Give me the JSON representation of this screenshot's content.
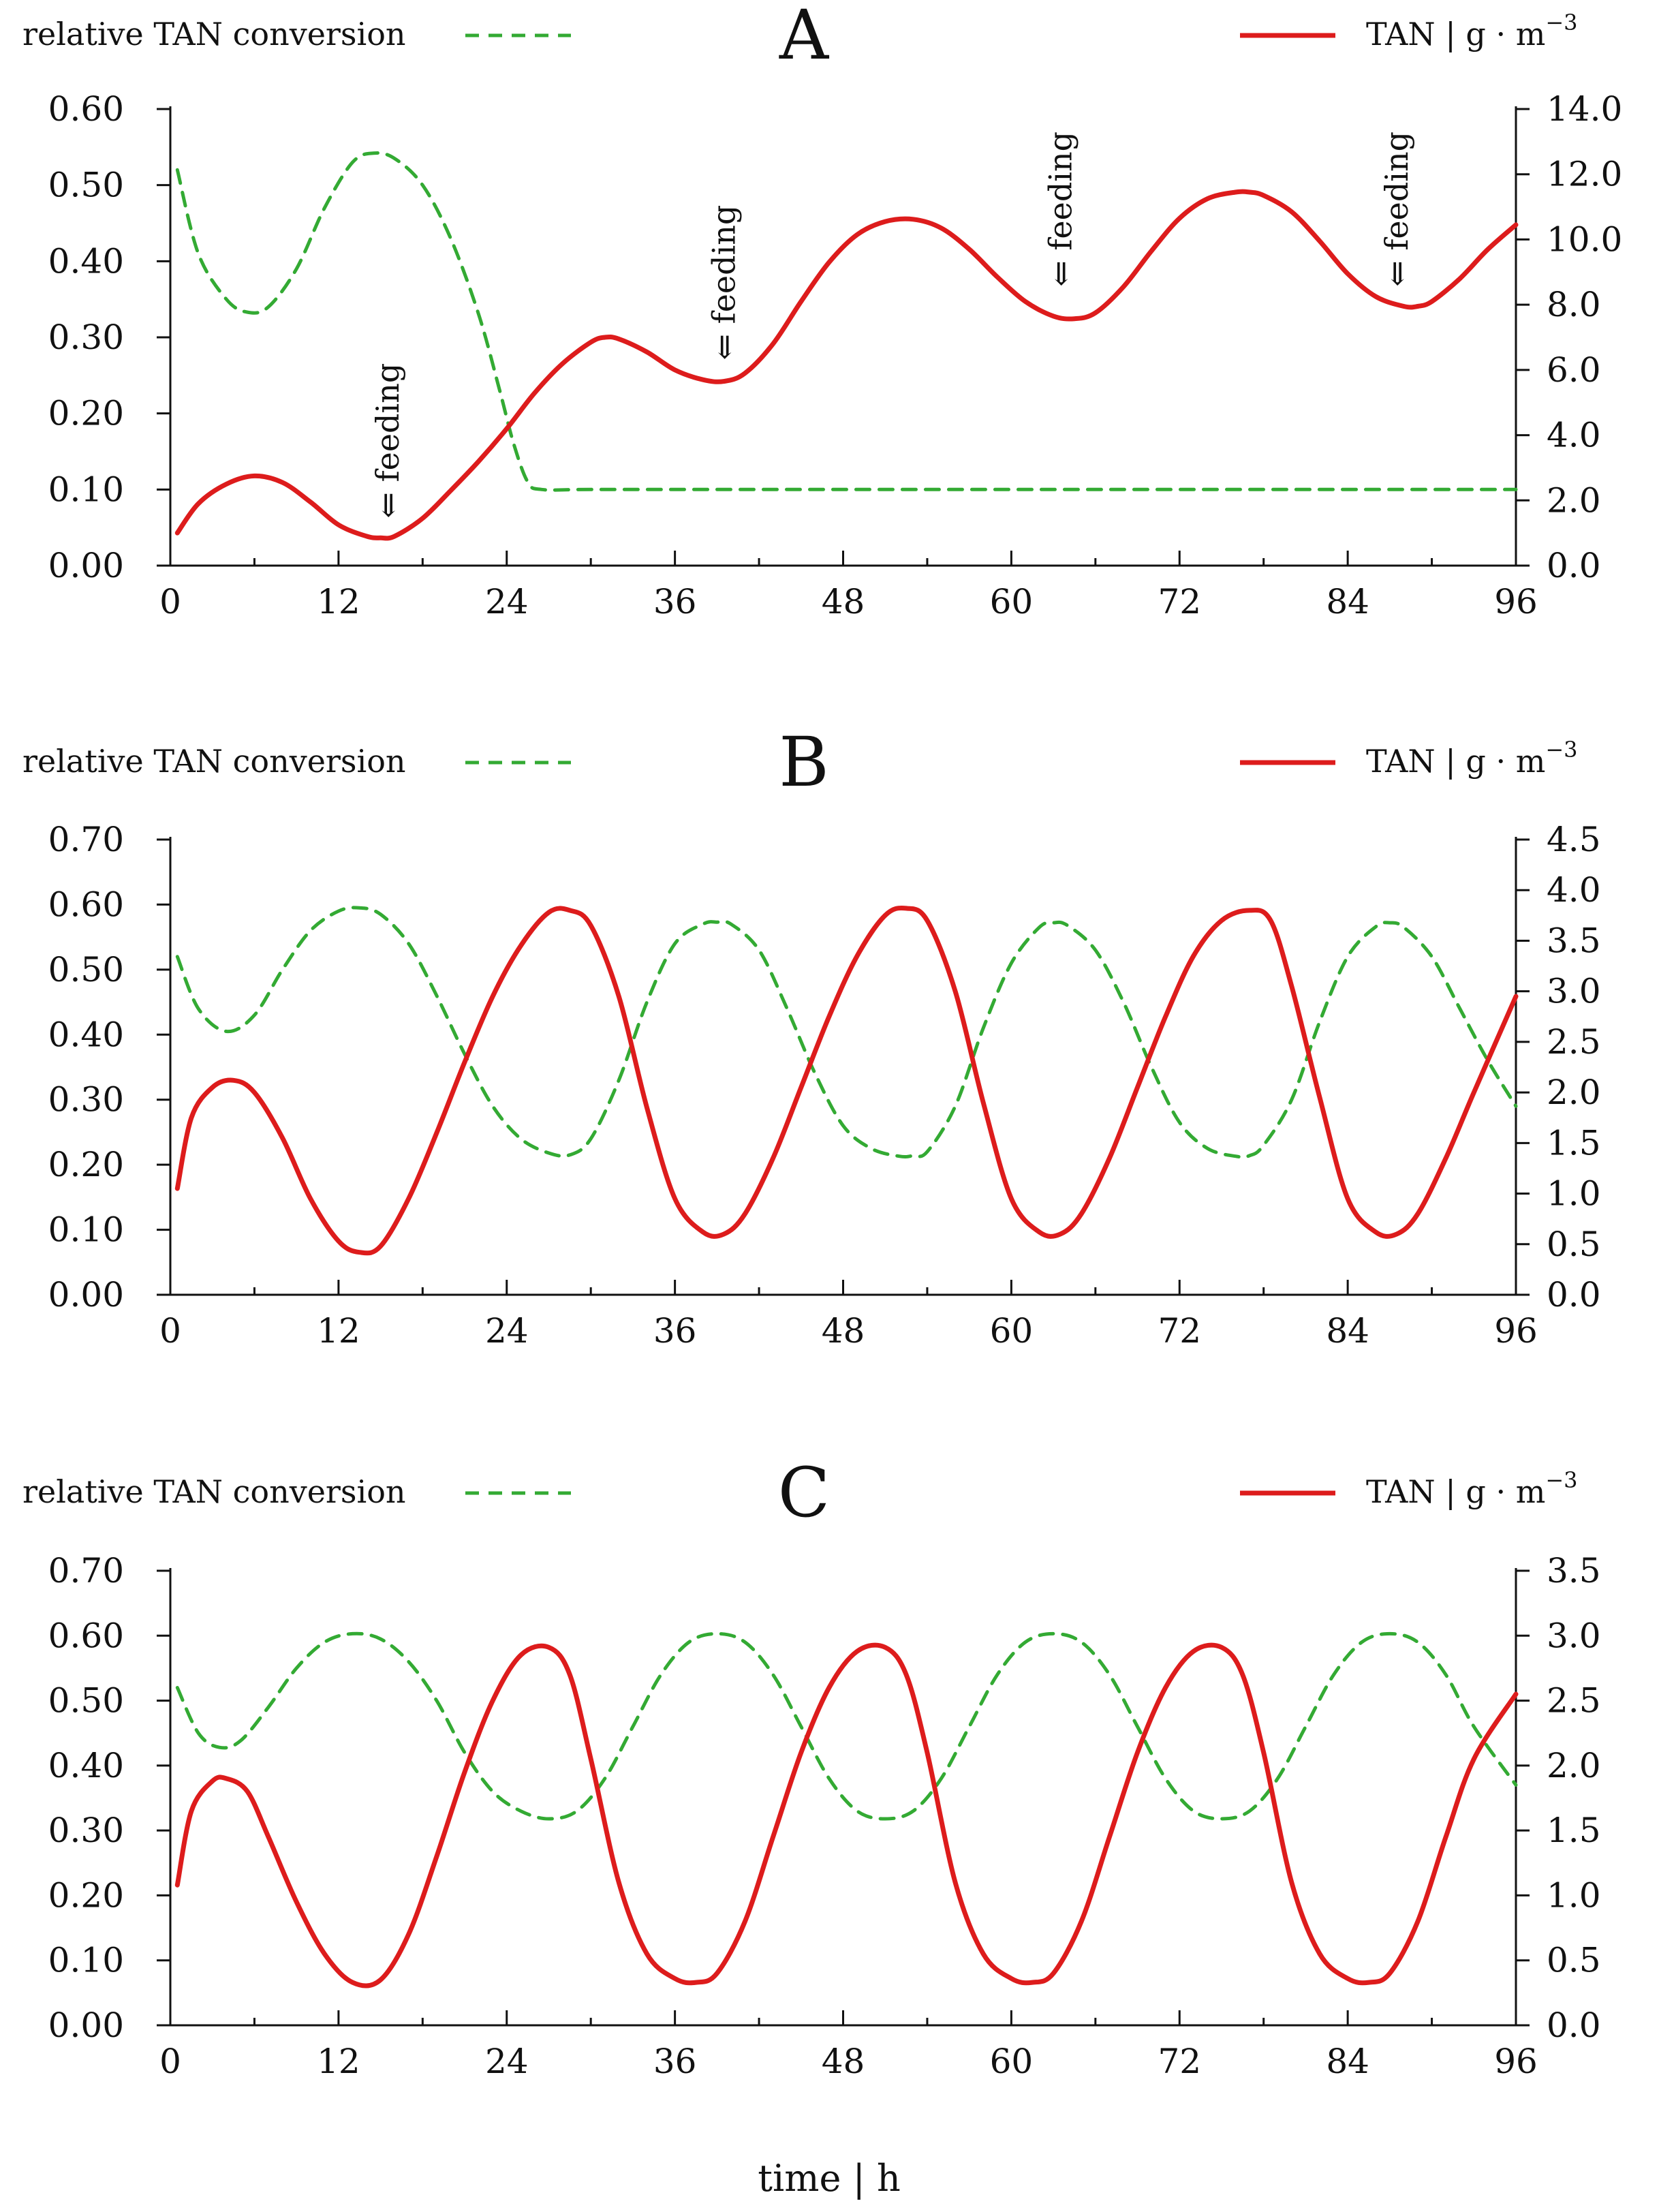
{
  "figure": {
    "x_axis_title": "time | h",
    "legend_left_label": "relative TAN conversion",
    "legend_right_label": "TAN | g · m",
    "legend_right_exponent": "−3",
    "colors": {
      "conversion": "#33aa33",
      "tan": "#dd1c1c",
      "axis": "#111111"
    }
  },
  "chart_data": [
    {
      "type": "line",
      "title": "A",
      "xlabel": "time | h",
      "xlim": [
        0,
        96
      ],
      "xticks": [
        0,
        12,
        24,
        36,
        48,
        60,
        72,
        84,
        96
      ],
      "xtick_labels": [
        "0",
        "12",
        "24",
        "36",
        "48",
        "60",
        "72",
        "84",
        "96"
      ],
      "ylabel_left": "relative TAN conversion",
      "ylim_left": [
        0,
        0.6
      ],
      "yticks_left": [
        0,
        0.1,
        0.2,
        0.3,
        0.4,
        0.5,
        0.6
      ],
      "ytick_labels_left": [
        "0.00",
        "0.10",
        "0.20",
        "0.30",
        "0.40",
        "0.50",
        "0.60"
      ],
      "ylabel_right": "TAN | g · m^-3",
      "ylim_right": [
        0,
        14
      ],
      "yticks_right": [
        0,
        2,
        4,
        6,
        8,
        10,
        12,
        14
      ],
      "ytick_labels_right": [
        "0.0",
        "2.0",
        "4.0",
        "6.0",
        "8.0",
        "10.0",
        "12.0",
        "14.0"
      ],
      "grid": false,
      "series": [
        {
          "name": "relative TAN conversion",
          "axis": "left",
          "style": "dashed",
          "x": [
            0.5,
            2,
            4,
            5.5,
            7,
            9,
            11,
            13,
            14.5,
            16,
            18,
            20,
            22,
            23.5,
            24.5,
            25.5,
            26.5,
            30,
            40,
            50,
            60,
            70,
            80,
            90,
            96
          ],
          "y": [
            0.52,
            0.41,
            0.35,
            0.333,
            0.34,
            0.39,
            0.47,
            0.53,
            0.542,
            0.535,
            0.5,
            0.43,
            0.33,
            0.23,
            0.16,
            0.11,
            0.1,
            0.1,
            0.1,
            0.1,
            0.1,
            0.1,
            0.1,
            0.1,
            0.1
          ]
        },
        {
          "name": "TAN",
          "axis": "right",
          "style": "solid",
          "x": [
            0.5,
            2,
            4,
            6,
            8,
            10,
            12,
            14,
            15,
            16,
            18,
            20,
            22,
            24,
            26,
            28,
            30,
            31,
            32,
            34,
            36,
            38,
            39.5,
            41,
            43,
            45,
            47,
            49,
            51,
            53,
            55,
            57,
            59,
            61,
            63,
            64.5,
            66,
            68,
            70,
            72,
            74,
            76,
            77,
            78,
            80,
            82,
            84,
            86,
            88,
            89,
            90,
            92,
            94,
            96
          ],
          "y": [
            1.0,
            1.9,
            2.5,
            2.75,
            2.55,
            1.95,
            1.25,
            0.9,
            0.85,
            0.9,
            1.45,
            2.3,
            3.2,
            4.2,
            5.3,
            6.2,
            6.85,
            7.0,
            6.95,
            6.55,
            6.0,
            5.7,
            5.65,
            5.9,
            6.8,
            8.1,
            9.3,
            10.15,
            10.55,
            10.62,
            10.35,
            9.7,
            8.85,
            8.1,
            7.65,
            7.57,
            7.75,
            8.55,
            9.65,
            10.65,
            11.25,
            11.45,
            11.45,
            11.35,
            10.85,
            9.95,
            8.95,
            8.25,
            7.95,
            7.95,
            8.1,
            8.8,
            9.7,
            10.45
          ]
        }
      ],
      "annotations": [
        {
          "text": "⇐ feeding",
          "x": 15.5,
          "y_right": 1.45
        },
        {
          "text": "⇐ feeding",
          "x": 39.5,
          "y_right": 6.3
        },
        {
          "text": "⇐ feeding",
          "x": 63.5,
          "y_right": 8.55
        },
        {
          "text": "⇐ feeding",
          "x": 87.5,
          "y_right": 8.55
        }
      ]
    },
    {
      "type": "line",
      "title": "B",
      "xlabel": "time | h",
      "xlim": [
        0,
        96
      ],
      "xticks": [
        0,
        12,
        24,
        36,
        48,
        60,
        72,
        84,
        96
      ],
      "xtick_labels": [
        "0",
        "12",
        "24",
        "36",
        "48",
        "60",
        "72",
        "84",
        "96"
      ],
      "ylabel_left": "relative TAN conversion",
      "ylim_left": [
        0,
        0.7
      ],
      "yticks_left": [
        0,
        0.1,
        0.2,
        0.3,
        0.4,
        0.5,
        0.6,
        0.7
      ],
      "ytick_labels_left": [
        "0.00",
        "0.10",
        "0.20",
        "0.30",
        "0.40",
        "0.50",
        "0.60",
        "0.70"
      ],
      "ylabel_right": "TAN | g · m^-3",
      "ylim_right": [
        0,
        4.5
      ],
      "yticks_right": [
        0,
        0.5,
        1,
        1.5,
        2,
        2.5,
        3,
        3.5,
        4,
        4.5
      ],
      "ytick_labels_right": [
        "0.0",
        "0.5",
        "1.0",
        "1.5",
        "2.0",
        "2.5",
        "3.0",
        "3.5",
        "4.0",
        "4.5"
      ],
      "grid": false,
      "series": [
        {
          "name": "relative TAN conversion",
          "axis": "left",
          "style": "dashed",
          "x": [
            0.5,
            2,
            4,
            6,
            8,
            10,
            12,
            13.5,
            15,
            17,
            19,
            21,
            23,
            25,
            27,
            28.5,
            30,
            32,
            34,
            36,
            38,
            39,
            40,
            42,
            44,
            46,
            48,
            50,
            52,
            53,
            54,
            56,
            58,
            60,
            62,
            63,
            64,
            66,
            68,
            70,
            72,
            74,
            76,
            77,
            78,
            80,
            82,
            84,
            86,
            87,
            88,
            90,
            92,
            94,
            96
          ],
          "y": [
            0.52,
            0.44,
            0.405,
            0.43,
            0.5,
            0.56,
            0.59,
            0.595,
            0.585,
            0.54,
            0.46,
            0.37,
            0.29,
            0.24,
            0.218,
            0.215,
            0.24,
            0.33,
            0.45,
            0.54,
            0.57,
            0.573,
            0.57,
            0.53,
            0.44,
            0.34,
            0.26,
            0.225,
            0.213,
            0.214,
            0.22,
            0.29,
            0.41,
            0.51,
            0.565,
            0.572,
            0.568,
            0.53,
            0.45,
            0.35,
            0.265,
            0.225,
            0.213,
            0.214,
            0.23,
            0.3,
            0.42,
            0.52,
            0.566,
            0.572,
            0.565,
            0.52,
            0.44,
            0.36,
            0.29
          ]
        },
        {
          "name": "TAN",
          "axis": "right",
          "style": "solid",
          "x": [
            0.5,
            1.5,
            3,
            4.5,
            6,
            8,
            10,
            12,
            13.5,
            15,
            17,
            19,
            21,
            23,
            25,
            27,
            28.5,
            30,
            32,
            34,
            36,
            38,
            39.5,
            41,
            43,
            45,
            47,
            49,
            51,
            52.5,
            54,
            56,
            58,
            60,
            62,
            63.5,
            65,
            67,
            69,
            71,
            73,
            75,
            77,
            78.5,
            80,
            82,
            84,
            86,
            87.5,
            89,
            91,
            93,
            96
          ],
          "y": [
            1.05,
            1.75,
            2.05,
            2.12,
            2.0,
            1.55,
            0.95,
            0.53,
            0.42,
            0.48,
            0.95,
            1.6,
            2.3,
            2.95,
            3.45,
            3.78,
            3.8,
            3.65,
            2.95,
            1.85,
            0.95,
            0.62,
            0.6,
            0.8,
            1.35,
            2.05,
            2.75,
            3.35,
            3.75,
            3.82,
            3.7,
            3.0,
            1.9,
            0.95,
            0.62,
            0.6,
            0.8,
            1.35,
            2.05,
            2.75,
            3.35,
            3.7,
            3.8,
            3.7,
            3.05,
            1.95,
            0.95,
            0.62,
            0.6,
            0.8,
            1.35,
            2.0,
            2.95
          ]
        }
      ],
      "annotations": []
    },
    {
      "type": "line",
      "title": "C",
      "xlabel": "time | h",
      "xlim": [
        0,
        96
      ],
      "xticks": [
        0,
        12,
        24,
        36,
        48,
        60,
        72,
        84,
        96
      ],
      "xtick_labels": [
        "0",
        "12",
        "24",
        "36",
        "48",
        "60",
        "72",
        "84",
        "96"
      ],
      "ylabel_left": "relative TAN conversion",
      "ylim_left": [
        0,
        0.7
      ],
      "yticks_left": [
        0,
        0.1,
        0.2,
        0.3,
        0.4,
        0.5,
        0.6,
        0.7
      ],
      "ytick_labels_left": [
        "0.00",
        "0.10",
        "0.20",
        "0.30",
        "0.40",
        "0.50",
        "0.60",
        "0.70"
      ],
      "ylabel_right": "TAN | g · m^-3",
      "ylim_right": [
        0,
        3.5
      ],
      "yticks_right": [
        0,
        0.5,
        1,
        1.5,
        2,
        2.5,
        3,
        3.5
      ],
      "ytick_labels_right": [
        "0.0",
        "0.5",
        "1.0",
        "1.5",
        "2.0",
        "2.5",
        "3.0",
        "3.5"
      ],
      "grid": false,
      "series": [
        {
          "name": "relative TAN conversion",
          "axis": "left",
          "style": "dashed",
          "x": [
            0.5,
            2,
            3.5,
            5,
            7,
            9,
            11,
            13,
            15,
            17,
            19,
            21,
            23,
            25,
            27,
            29,
            31,
            33,
            35,
            37,
            39,
            41,
            43,
            45,
            47,
            49,
            51,
            53,
            55,
            57,
            59,
            61,
            63,
            65,
            67,
            69,
            71,
            73,
            75,
            77,
            79,
            81,
            83,
            85,
            87,
            89,
            91,
            93,
            96
          ],
          "y": [
            0.52,
            0.45,
            0.428,
            0.438,
            0.49,
            0.55,
            0.59,
            0.603,
            0.595,
            0.56,
            0.5,
            0.42,
            0.36,
            0.33,
            0.318,
            0.33,
            0.38,
            0.46,
            0.54,
            0.59,
            0.603,
            0.59,
            0.54,
            0.46,
            0.38,
            0.33,
            0.318,
            0.33,
            0.38,
            0.46,
            0.54,
            0.59,
            0.603,
            0.59,
            0.54,
            0.46,
            0.38,
            0.33,
            0.318,
            0.33,
            0.38,
            0.46,
            0.54,
            0.59,
            0.603,
            0.59,
            0.54,
            0.46,
            0.37
          ]
        },
        {
          "name": "TAN",
          "axis": "right",
          "style": "solid",
          "x": [
            0.5,
            1.5,
            3,
            4,
            5.5,
            7,
            9,
            11,
            13,
            15,
            17,
            19,
            21,
            23,
            25,
            27,
            28.5,
            30,
            32,
            34,
            36,
            37.5,
            39,
            41,
            43,
            45,
            47,
            49,
            51,
            52.5,
            54,
            56,
            58,
            60,
            61.5,
            63,
            65,
            67,
            69,
            71,
            73,
            75,
            76.5,
            78,
            80,
            82,
            84,
            85.5,
            87,
            89,
            91,
            93,
            96
          ],
          "y": [
            1.08,
            1.65,
            1.88,
            1.9,
            1.8,
            1.45,
            0.95,
            0.55,
            0.33,
            0.35,
            0.7,
            1.3,
            1.95,
            2.5,
            2.85,
            2.91,
            2.7,
            2.05,
            1.1,
            0.55,
            0.36,
            0.33,
            0.4,
            0.8,
            1.45,
            2.1,
            2.6,
            2.88,
            2.91,
            2.7,
            2.1,
            1.1,
            0.55,
            0.36,
            0.33,
            0.4,
            0.8,
            1.45,
            2.1,
            2.6,
            2.88,
            2.91,
            2.7,
            2.1,
            1.1,
            0.55,
            0.36,
            0.33,
            0.4,
            0.8,
            1.45,
            2.05,
            2.55
          ]
        }
      ],
      "annotations": []
    }
  ]
}
